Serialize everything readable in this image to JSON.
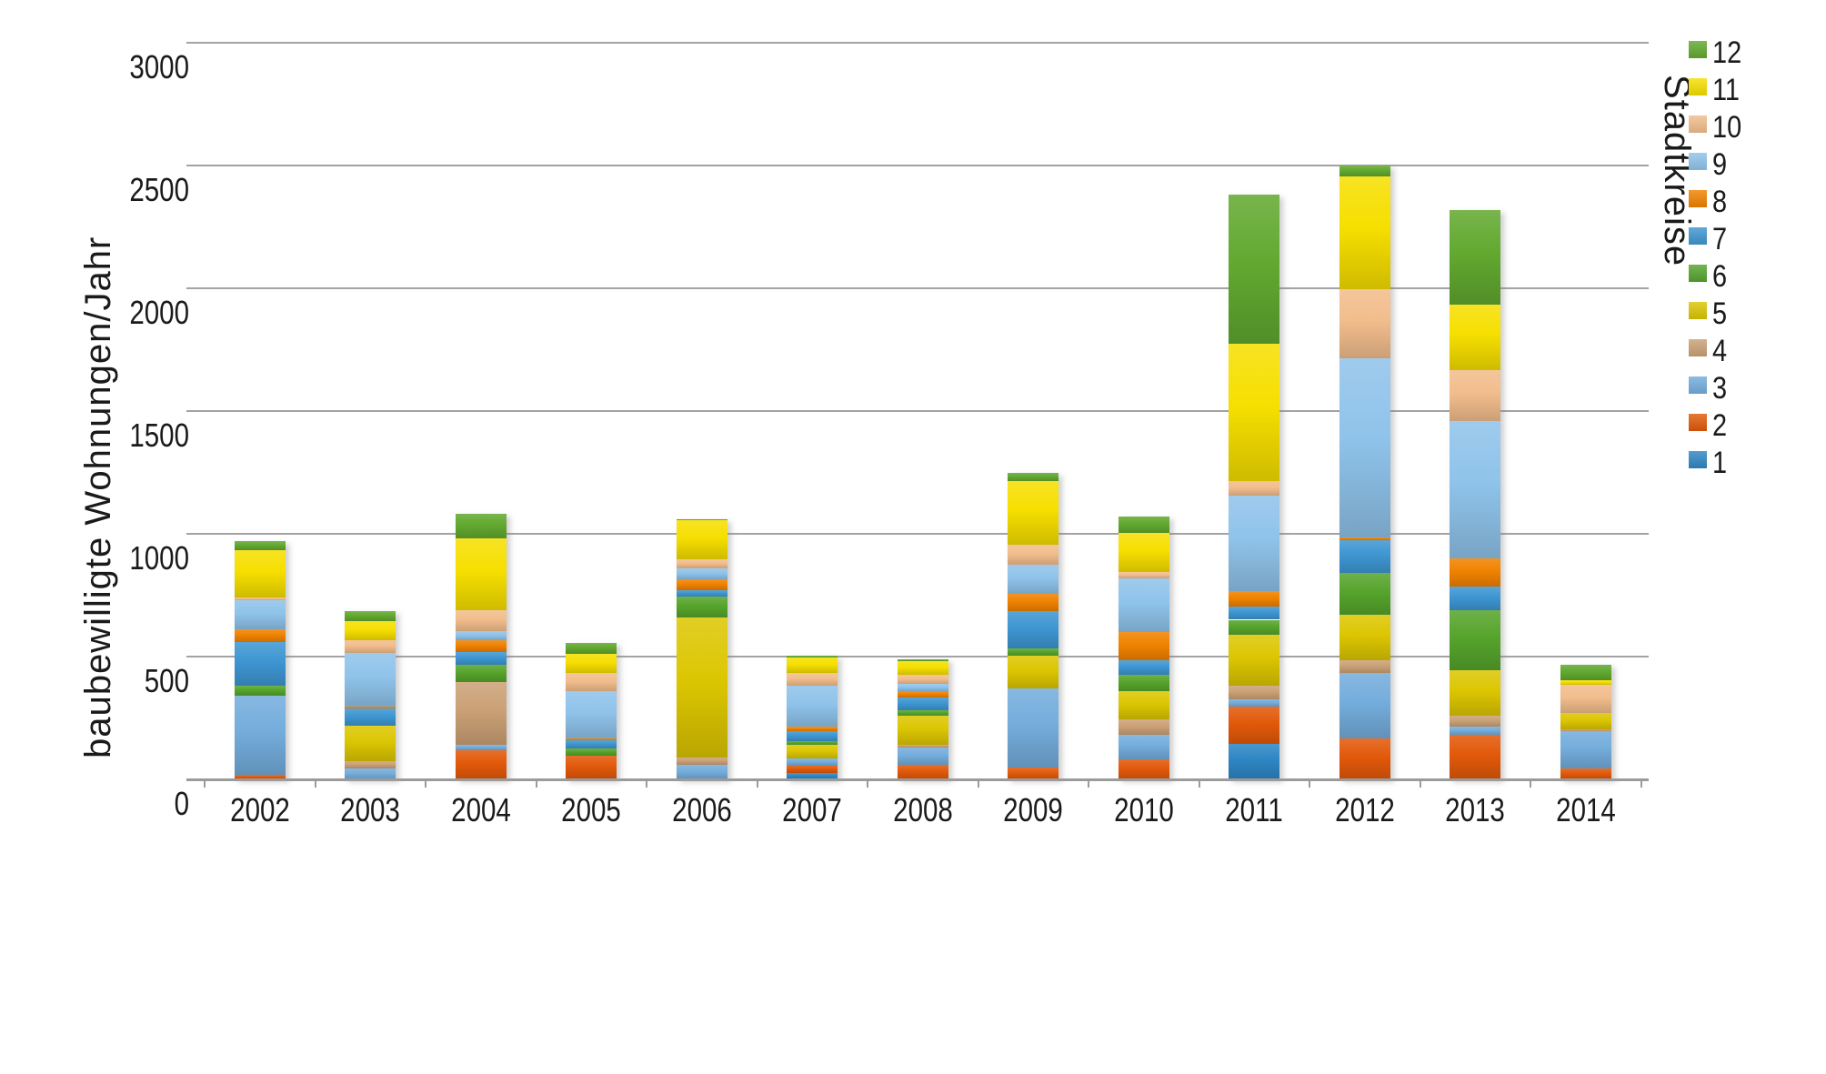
{
  "chart_data": {
    "type": "bar",
    "stacked": true,
    "title": "",
    "xlabel": "",
    "ylabel": "baubewilligte Wohnungen/Jahr",
    "ylim": [
      0,
      3000
    ],
    "yticks": [
      0,
      500,
      1000,
      1500,
      2000,
      2500,
      3000
    ],
    "grid": true,
    "legend_title": "Stadtkreise",
    "legend_position": "right",
    "legend_order_top_to_bottom": [
      "12",
      "11",
      "10",
      "9",
      "8",
      "7",
      "6",
      "5",
      "4",
      "3",
      "2",
      "1"
    ],
    "categories": [
      "2002",
      "2003",
      "2004",
      "2005",
      "2006",
      "2007",
      "2008",
      "2009",
      "2010",
      "2011",
      "2012",
      "2013",
      "2014"
    ],
    "series": [
      {
        "name": "1",
        "color": "#2E86C4",
        "values": [
          0,
          0,
          0,
          0,
          0,
          25,
          0,
          0,
          0,
          145,
          0,
          0,
          0
        ]
      },
      {
        "name": "2",
        "color": "#E2590A",
        "values": [
          20,
          0,
          120,
          95,
          0,
          30,
          60,
          50,
          80,
          150,
          165,
          180,
          45
        ]
      },
      {
        "name": "3",
        "color": "#74ADDC",
        "values": [
          320,
          45,
          20,
          0,
          60,
          30,
          70,
          320,
          100,
          30,
          270,
          35,
          150
        ]
      },
      {
        "name": "4",
        "color": "#CBA176",
        "values": [
          0,
          30,
          255,
          0,
          30,
          0,
          10,
          0,
          65,
          55,
          50,
          45,
          10
        ]
      },
      {
        "name": "5",
        "color": "#DCC602",
        "values": [
          0,
          145,
          0,
          0,
          570,
          55,
          120,
          135,
          115,
          210,
          185,
          185,
          65
        ]
      },
      {
        "name": "6",
        "color": "#56A42C",
        "values": [
          40,
          0,
          70,
          30,
          85,
          15,
          20,
          30,
          65,
          60,
          170,
          245,
          0
        ]
      },
      {
        "name": "7",
        "color": "#3E96D2",
        "values": [
          180,
          70,
          55,
          35,
          25,
          40,
          55,
          150,
          60,
          55,
          135,
          95,
          0
        ]
      },
      {
        "name": "8",
        "color": "#F08200",
        "values": [
          50,
          5,
          45,
          5,
          45,
          20,
          25,
          70,
          115,
          60,
          10,
          115,
          0
        ]
      },
      {
        "name": "9",
        "color": "#8FC3EA",
        "values": [
          120,
          220,
          40,
          195,
          45,
          165,
          30,
          120,
          220,
          390,
          730,
          560,
          0
        ]
      },
      {
        "name": "10",
        "color": "#F2BD8C",
        "values": [
          10,
          50,
          85,
          75,
          35,
          55,
          35,
          80,
          25,
          60,
          280,
          205,
          115
        ]
      },
      {
        "name": "11",
        "color": "#F6DF00",
        "values": [
          195,
          80,
          290,
          75,
          160,
          60,
          55,
          260,
          160,
          560,
          460,
          270,
          20
        ]
      },
      {
        "name": "12",
        "color": "#62A930",
        "values": [
          35,
          40,
          100,
          45,
          5,
          10,
          10,
          35,
          65,
          605,
          45,
          385,
          60
        ]
      }
    ],
    "totals": [
      970,
      685,
      1080,
      555,
      1060,
      505,
      490,
      1250,
      1070,
      2380,
      2500,
      2320,
      465
    ]
  }
}
